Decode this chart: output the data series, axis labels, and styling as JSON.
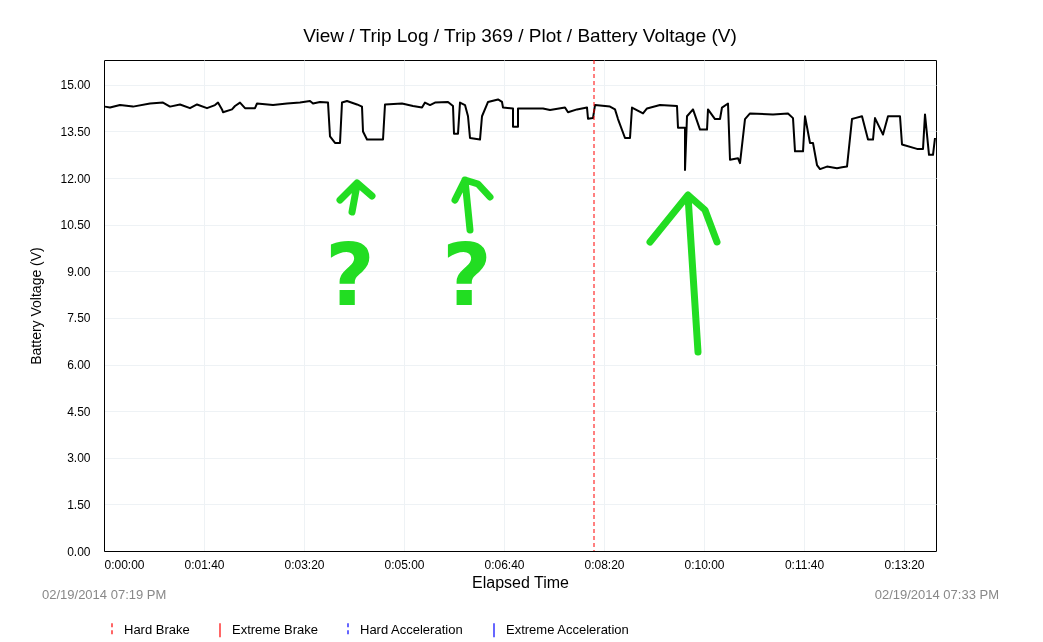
{
  "chart_data": {
    "type": "line",
    "title": "View / Trip Log / Trip 369 / Plot / Battery Voltage (V)",
    "xlabel": "Elapsed Time",
    "ylabel": "Battery Voltage (V)",
    "xlim": [
      0,
      832
    ],
    "xticks": [
      {
        "value": 0,
        "label": "0:00:00"
      },
      {
        "value": 100,
        "label": "0:01:40"
      },
      {
        "value": 200,
        "label": "0:03:20"
      },
      {
        "value": 300,
        "label": "0:05:00"
      },
      {
        "value": 400,
        "label": "0:06:40"
      },
      {
        "value": 500,
        "label": "0:08:20"
      },
      {
        "value": 600,
        "label": "0:10:00"
      },
      {
        "value": 700,
        "label": "0:11:40"
      },
      {
        "value": 800,
        "label": "0:13:20"
      }
    ],
    "ylim": [
      0,
      15.8
    ],
    "yticks": [
      {
        "value": 0,
        "label": "0.00"
      },
      {
        "value": 1.5,
        "label": "1.50"
      },
      {
        "value": 3,
        "label": "3.00"
      },
      {
        "value": 4.5,
        "label": "4.50"
      },
      {
        "value": 6,
        "label": "6.00"
      },
      {
        "value": 7.5,
        "label": "7.50"
      },
      {
        "value": 9,
        "label": "9.00"
      },
      {
        "value": 10.5,
        "label": "10.50"
      },
      {
        "value": 12,
        "label": "12.00"
      },
      {
        "value": 13.5,
        "label": "13.50"
      },
      {
        "value": 15,
        "label": "15.00"
      }
    ],
    "grid": true,
    "legend": "bottom",
    "line_style": "solid",
    "series": [
      {
        "color": "#000000",
        "x": [
          1,
          6,
          16,
          29,
          46,
          59,
          66,
          76,
          86,
          93,
          103,
          111,
          114,
          118,
          119,
          128,
          131,
          136,
          141,
          151,
          153,
          169,
          183,
          196,
          206,
          209,
          216,
          224,
          226,
          231,
          236,
          238,
          243,
          253,
          258,
          259,
          263,
          279,
          281,
          298,
          309,
          318,
          321,
          326,
          331,
          344,
          349,
          350,
          354,
          356,
          361,
          364,
          366,
          376,
          378,
          383,
          384,
          394,
          398,
          399,
          409,
          409,
          414,
          414,
          439,
          446,
          461,
          464,
          473,
          483,
          484,
          489,
          491,
          506,
          511,
          514,
          521,
          526,
          528,
          539,
          543,
          556,
          573,
          574,
          581,
          581,
          583,
          589,
          596,
          603,
          604,
          611,
          616,
          618,
          624,
          626,
          634,
          636,
          641,
          646,
          669,
          684,
          689,
          691,
          699,
          701,
          706,
          709,
          713,
          716,
          723,
          733,
          738,
          743,
          748,
          751,
          758,
          764,
          769,
          771,
          779,
          784,
          796,
          798,
          813,
          819,
          821,
          825,
          829,
          831
        ],
        "values": [
          14.3,
          14.27,
          14.35,
          14.3,
          14.4,
          14.43,
          14.3,
          14.37,
          14.25,
          14.37,
          14.25,
          14.35,
          14.43,
          14.21,
          14.12,
          14.21,
          14.32,
          14.43,
          14.25,
          14.25,
          14.4,
          14.35,
          14.4,
          14.43,
          14.48,
          14.4,
          14.45,
          14.43,
          13.34,
          13.13,
          13.13,
          14.43,
          14.48,
          14.37,
          14.3,
          13.5,
          13.24,
          13.24,
          14.37,
          14.4,
          14.32,
          14.27,
          14.43,
          14.35,
          14.43,
          14.45,
          14.32,
          13.43,
          13.43,
          14.43,
          14.35,
          13.99,
          13.29,
          13.24,
          13.99,
          14.37,
          14.45,
          14.53,
          14.45,
          14.27,
          14.24,
          13.65,
          13.65,
          14.24,
          14.24,
          14.19,
          14.27,
          14.12,
          14.21,
          14.27,
          13.91,
          13.93,
          14.35,
          14.3,
          14.21,
          13.9,
          13.29,
          13.29,
          14.27,
          14.08,
          14.24,
          14.35,
          14.32,
          13.62,
          13.62,
          12.26,
          13.99,
          14.21,
          13.56,
          13.56,
          14.21,
          13.9,
          13.9,
          14.27,
          14.4,
          12.59,
          12.64,
          12.48,
          13.9,
          14.08,
          14.05,
          14.08,
          13.93,
          12.86,
          12.86,
          13.99,
          13.13,
          13.13,
          12.42,
          12.29,
          12.37,
          12.32,
          12.35,
          12.37,
          13.9,
          13.93,
          13.99,
          13.24,
          13.24,
          13.93,
          13.4,
          13.99,
          13.99,
          13.08,
          12.94,
          12.94,
          14.05,
          12.75,
          12.75,
          13.29
        ]
      },
      {
        "name": "Extreme Brake",
        "color": "#ff0000",
        "line_style": "solid"
      },
      {
        "name": "Hard Acceleration",
        "color": "#0000ff",
        "line_style": "dashed"
      },
      {
        "name": "Extreme Acceleration",
        "color": "#0000ff",
        "line_style": "solid"
      }
    ],
    "ref_lines": [
      {
        "axis": "x",
        "value": 490,
        "label": "Hard Brake",
        "color": "#ff0000",
        "line_style": "dashed"
      }
    ],
    "annotations": [
      "02/19/2014 07:19 PM",
      "02/19/2014 07:33 PM",
      "?",
      "?"
    ]
  }
}
